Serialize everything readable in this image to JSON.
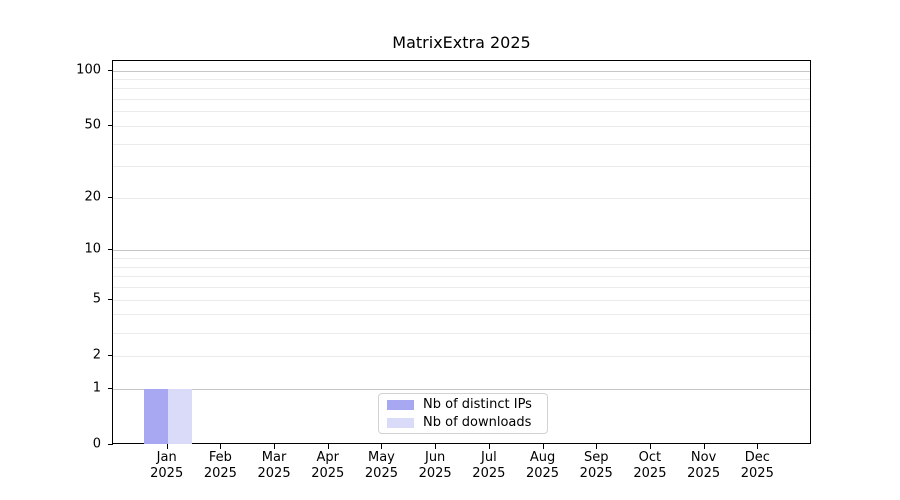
{
  "chart_data": {
    "type": "bar",
    "title": "MatrixExtra 2025",
    "categories": [
      "Jan 2025",
      "Feb 2025",
      "Mar 2025",
      "Apr 2025",
      "May 2025",
      "Jun 2025",
      "Jul 2025",
      "Aug 2025",
      "Sep 2025",
      "Oct 2025",
      "Nov 2025",
      "Dec 2025"
    ],
    "series": [
      {
        "name": "Nb of distinct IPs",
        "color": "#a8a8f2",
        "values": [
          1,
          0,
          0,
          0,
          0,
          0,
          0,
          0,
          0,
          0,
          0,
          0
        ]
      },
      {
        "name": "Nb of downloads",
        "color": "#dadaf9",
        "values": [
          1,
          0,
          0,
          0,
          0,
          0,
          0,
          0,
          0,
          0,
          0,
          0
        ]
      }
    ],
    "xlabel": "",
    "ylabel": "",
    "y_axis": {
      "scale": "log1p",
      "tick_labels": [
        "0",
        "1",
        "2",
        "5",
        "10",
        "20",
        "50",
        "100"
      ],
      "tick_values": [
        0,
        1,
        2,
        5,
        10,
        20,
        50,
        100
      ],
      "major_grid_values": [
        1,
        10,
        100
      ],
      "minor_grid_values": [
        2,
        3,
        4,
        5,
        6,
        7,
        8,
        9,
        20,
        30,
        40,
        50,
        60,
        70,
        80,
        90
      ],
      "ylim": [
        0,
        113
      ]
    },
    "legend": {
      "position": "lower center",
      "entries": [
        "Nb of distinct IPs",
        "Nb of downloads"
      ]
    },
    "grid": true
  },
  "colors": {
    "background": "#ffffff",
    "axis": "#000000",
    "text": "#000000",
    "major_grid": "#c6c6c6",
    "minor_grid": "#ebebeb",
    "legend_border": "#d2d2d2",
    "legend_background": "#ffffff"
  }
}
